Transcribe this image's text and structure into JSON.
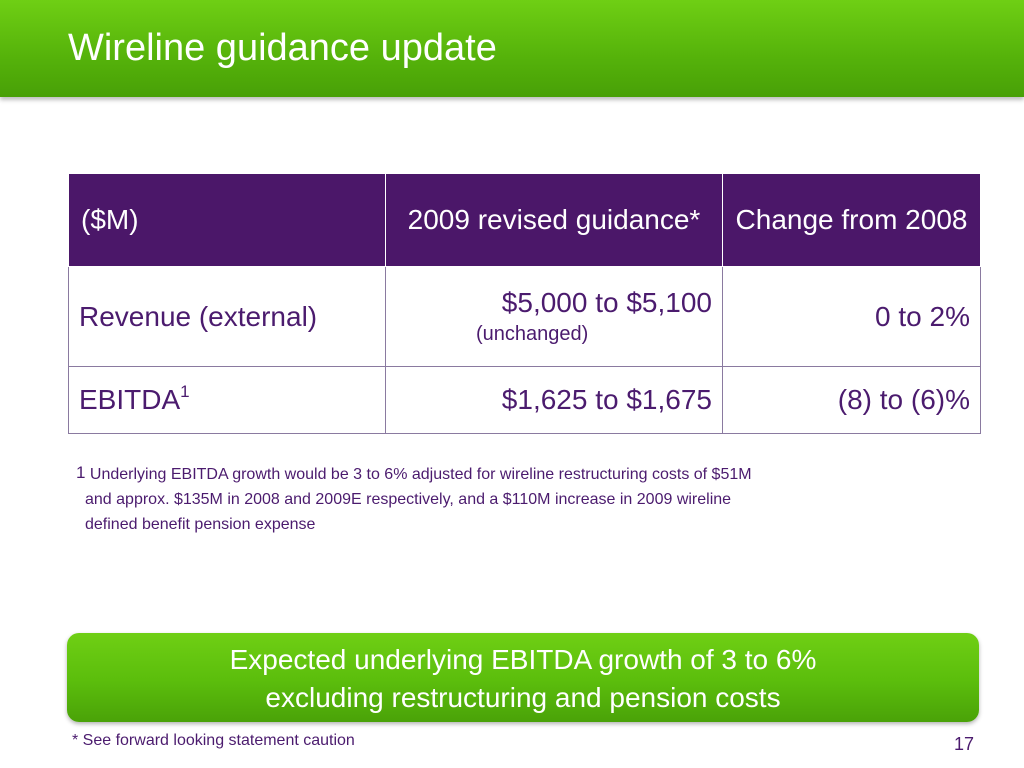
{
  "slide": {
    "title": "Wireline guidance update",
    "table": {
      "headers": [
        "($M)",
        "2009 revised guidance*",
        "Change from 2008"
      ],
      "rows": [
        {
          "label": "Revenue (external)",
          "label_sup": "",
          "guidance": "$5,000 to $5,100",
          "guidance_note": "(unchanged)",
          "change": "0 to 2%"
        },
        {
          "label": "EBITDA",
          "label_sup": "1",
          "guidance": "$1,625 to $1,675",
          "guidance_note": "",
          "change": "(8) to (6)%"
        }
      ]
    },
    "footnote": {
      "marker": "1",
      "text_line1": "Underlying EBITDA growth would be 3 to 6% adjusted for wireline restructuring costs of $51M",
      "text_line2": "and approx. $135M in 2008 and 2009E respectively, and a $110M increase in 2009 wireline",
      "text_line3": "defined benefit pension expense"
    },
    "callout": {
      "line1": "Expected underlying EBITDA growth of 3 to 6%",
      "line2": "excluding restructuring and pension costs"
    },
    "caution": "* See forward looking statement caution",
    "page_number": "17"
  },
  "colors": {
    "brand_green": "#5bbd0c",
    "header_purple": "#4b1769",
    "text_purple": "#4b1b6e"
  }
}
